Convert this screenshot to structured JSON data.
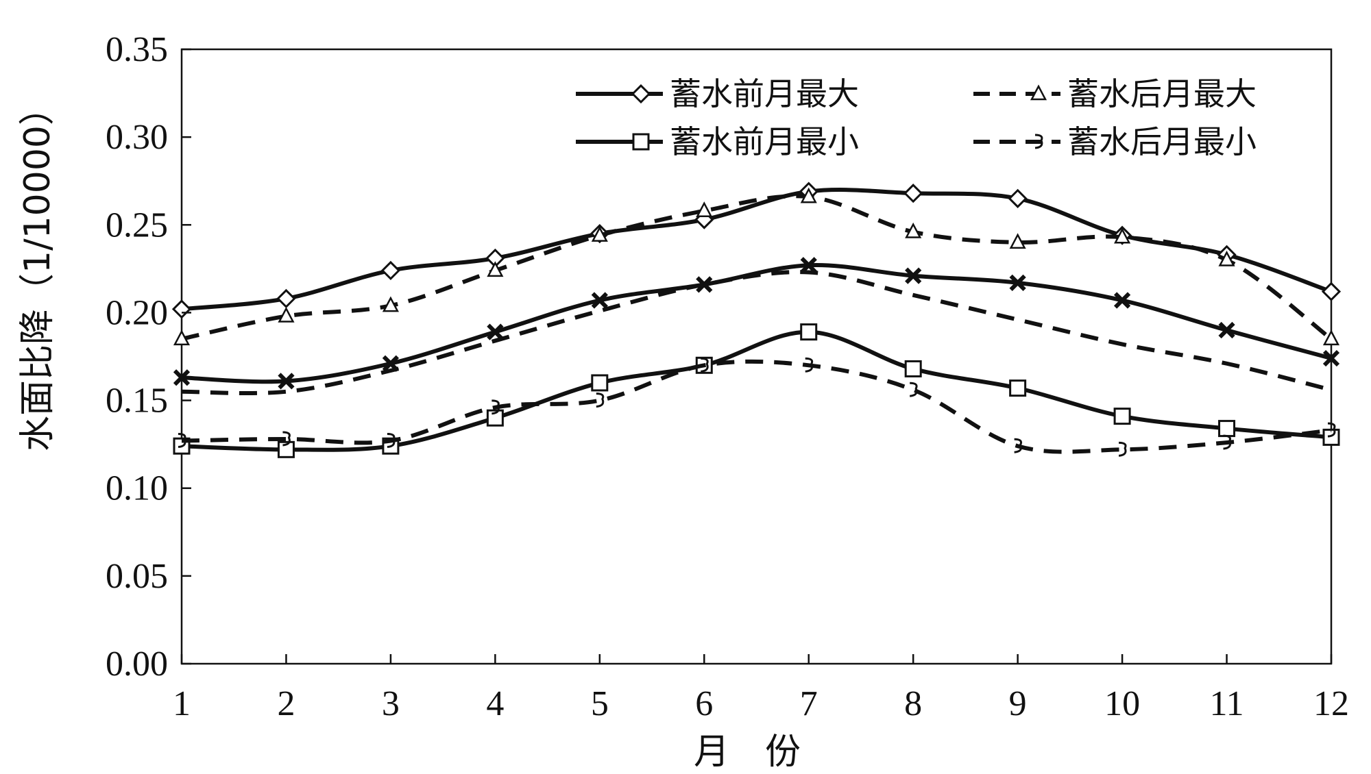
{
  "chart_data": {
    "type": "line",
    "title": "",
    "xlabel": "月　份",
    "ylabel": "水面比降（1/10000）",
    "x": [
      1,
      2,
      3,
      4,
      5,
      6,
      7,
      8,
      9,
      10,
      11,
      12
    ],
    "x_tick_labels": [
      "1",
      "2",
      "3",
      "4",
      "5",
      "6",
      "7",
      "8",
      "9",
      "10",
      "11",
      "12"
    ],
    "ylim": [
      0,
      0.35
    ],
    "y_ticks": [
      0.0,
      0.05,
      0.1,
      0.15,
      0.2,
      0.25,
      0.3,
      0.35
    ],
    "y_tick_labels": [
      "0.00",
      "0.05",
      "0.10",
      "0.15",
      "0.20",
      "0.25",
      "0.30",
      "0.35"
    ],
    "grid": false,
    "legend_position": "top-right",
    "series": [
      {
        "name": "蓄水前月最大",
        "dash": "solid",
        "marker": "diamond",
        "in_legend": true,
        "values": [
          0.202,
          0.208,
          0.224,
          0.231,
          0.245,
          0.253,
          0.269,
          0.268,
          0.265,
          0.244,
          0.233,
          0.212
        ]
      },
      {
        "name": "蓄水后月最大",
        "dash": "dashed",
        "marker": "triangle",
        "in_legend": true,
        "values": [
          0.185,
          0.198,
          0.204,
          0.224,
          0.244,
          0.258,
          0.266,
          0.246,
          0.24,
          0.243,
          0.23,
          0.185
        ]
      },
      {
        "name": "蓄水前月最小",
        "dash": "solid",
        "marker": "square",
        "in_legend": true,
        "values": [
          0.124,
          0.122,
          0.124,
          0.14,
          0.16,
          0.17,
          0.189,
          0.168,
          0.157,
          0.141,
          0.134,
          0.129
        ]
      },
      {
        "name": "蓄水后月最小",
        "dash": "dashed",
        "marker": "bracket",
        "in_legend": true,
        "values": [
          0.127,
          0.128,
          0.127,
          0.146,
          0.15,
          0.17,
          0.17,
          0.156,
          0.124,
          0.122,
          0.126,
          0.133
        ]
      },
      {
        "name": "",
        "dash": "solid",
        "marker": "cross",
        "in_legend": false,
        "values": [
          0.163,
          0.161,
          0.171,
          0.189,
          0.207,
          0.216,
          0.227,
          0.221,
          0.217,
          0.207,
          0.19,
          0.174
        ]
      },
      {
        "name": "",
        "dash": "dashed",
        "marker": "none",
        "in_legend": false,
        "values": [
          0.155,
          0.155,
          0.167,
          0.184,
          0.201,
          0.216,
          0.223,
          0.21,
          0.196,
          0.182,
          0.171,
          0.156
        ]
      }
    ],
    "colors": {
      "line": "#111111",
      "background": "#ffffff"
    }
  }
}
